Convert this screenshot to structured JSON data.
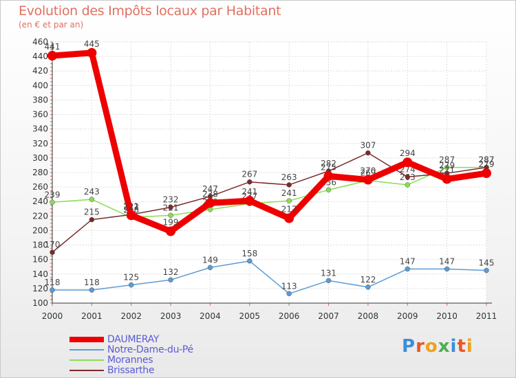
{
  "header": {
    "title": "Evolution des Impôts locaux par Habitant",
    "subtitle": "(en € et par an)"
  },
  "logo": {
    "text": "Proxiti"
  },
  "chart_data": {
    "type": "line",
    "x": [
      2000,
      2001,
      2002,
      2003,
      2004,
      2005,
      2006,
      2007,
      2008,
      2009,
      2010,
      2011
    ],
    "ylim": [
      100,
      460
    ],
    "yticks": [
      100,
      120,
      140,
      160,
      180,
      200,
      220,
      240,
      260,
      280,
      300,
      320,
      340,
      360,
      380,
      400,
      420,
      440,
      460
    ],
    "grid": true,
    "legend_position": "bottom-left",
    "series": [
      {
        "name": "DAUMERAY",
        "color": "#ee0000",
        "values": [
          441,
          445,
          221,
          199,
          238,
          241,
          217,
          275,
          270,
          294,
          271,
          279
        ]
      },
      {
        "name": "Notre-Dame-du-Pé",
        "color": "#5b9bd5",
        "values": [
          118,
          118,
          125,
          132,
          149,
          158,
          113,
          131,
          122,
          147,
          147,
          145
        ]
      },
      {
        "name": "Morannes",
        "color": "#88dd55",
        "values": [
          239,
          243,
          218,
          221,
          229,
          237,
          241,
          256,
          269,
          263,
          287,
          287
        ]
      },
      {
        "name": "Brissarthe",
        "color": "#7a2a2a",
        "values": [
          170,
          215,
          222,
          232,
          247,
          267,
          263,
          282,
          307,
          274,
          279,
          287
        ]
      }
    ]
  }
}
